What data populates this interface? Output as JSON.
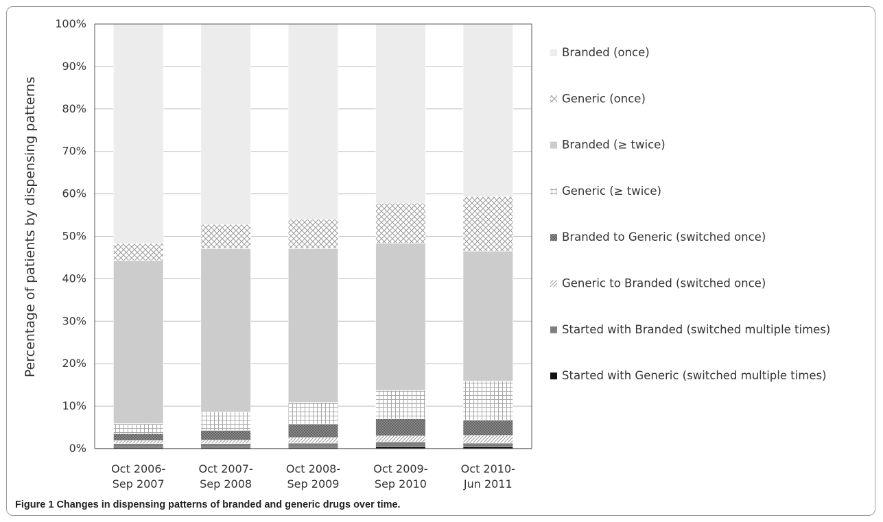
{
  "figure": {
    "label": "Figure 1",
    "caption": "Changes in dispensing patterns of branded and generic drugs over time."
  },
  "colors": {
    "branded_once": "#ececec",
    "generic_once": "#bcbcbc",
    "branded_twice": "#cccccc",
    "generic_twice": "#bdbdbd",
    "branded_to_generic": "#8a8a8a",
    "generic_to_branded": "#bcbcbc",
    "started_branded_multi": "#7f7f7f",
    "started_generic_multi": "#111111"
  },
  "chart_data": {
    "type": "bar",
    "stacked": true,
    "title": "",
    "xlabel": "",
    "ylabel": "Percentage of patients by dispensing patterns",
    "ylim": [
      0,
      100
    ],
    "yticks": [
      "0%",
      "10%",
      "20%",
      "30%",
      "40%",
      "50%",
      "60%",
      "70%",
      "80%",
      "90%",
      "100%"
    ],
    "grid": true,
    "legend_position": "right",
    "categories": [
      [
        "Oct 2006-",
        "Sep 2007"
      ],
      [
        "Oct 2007-",
        "Sep 2008"
      ],
      [
        "Oct 2008-",
        "Sep 2009"
      ],
      [
        "Oct 2009-",
        "Sep 2010"
      ],
      [
        "Oct 2010-",
        "Jun 2011"
      ]
    ],
    "series": [
      {
        "name": "Started with Generic (switched multiple times)",
        "key": "started_generic_multi",
        "pattern": "solid",
        "values": [
          0.3,
          0.3,
          0.3,
          0.5,
          0.5
        ]
      },
      {
        "name": "Started with Branded (switched multiple times)",
        "key": "started_branded_multi",
        "pattern": "solid",
        "values": [
          0.9,
          0.9,
          1.0,
          1.1,
          0.8
        ]
      },
      {
        "name": "Generic to Branded (switched once)",
        "key": "generic_to_branded",
        "pattern": "diagonal",
        "values": [
          0.7,
          0.8,
          1.3,
          1.4,
          1.8
        ]
      },
      {
        "name": "Branded to Generic (switched once)",
        "key": "branded_to_generic",
        "pattern": "crosshatch-dense",
        "values": [
          1.6,
          2.3,
          3.2,
          4.0,
          3.6
        ]
      },
      {
        "name": "Generic (≥ twice)",
        "key": "generic_twice",
        "pattern": "grid",
        "values": [
          2.4,
          4.3,
          5.1,
          6.7,
          9.2
        ]
      },
      {
        "name": "Branded (≥ twice)",
        "key": "branded_twice",
        "pattern": "solid",
        "values": [
          38.4,
          38.5,
          36.2,
          34.7,
          30.6
        ]
      },
      {
        "name": "Generic (once)",
        "key": "generic_once",
        "pattern": "crosshatch",
        "values": [
          4.0,
          5.7,
          6.9,
          9.4,
          12.9
        ]
      },
      {
        "name": "Branded (once)",
        "key": "branded_once",
        "pattern": "solid",
        "values": [
          51.7,
          47.2,
          46.0,
          42.2,
          40.6
        ]
      }
    ],
    "legend_order": [
      "Branded (once)",
      "Generic (once)",
      "Branded (≥ twice)",
      "Generic (≥ twice)",
      "Branded to Generic (switched once)",
      "Generic to Branded (switched once)",
      "Started with Branded (switched multiple times)",
      "Started with Generic (switched multiple times)"
    ]
  }
}
